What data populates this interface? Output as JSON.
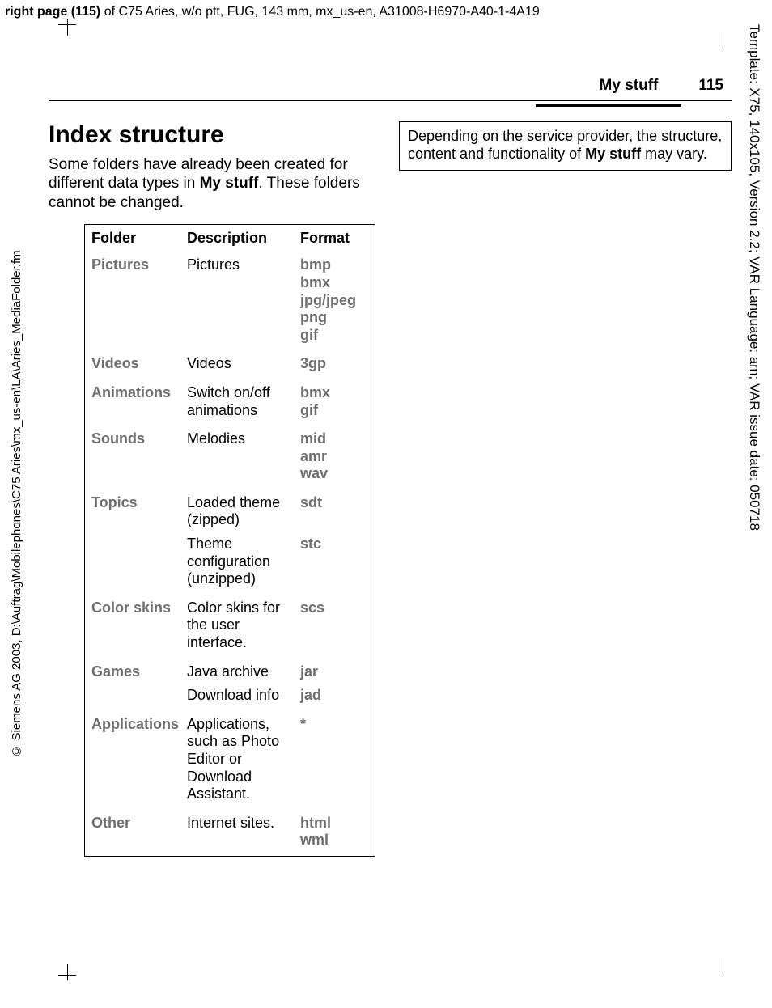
{
  "meta": {
    "top_bold": "right page (115)",
    "top_rest": " of C75 Aries, w/o ptt, FUG, 143 mm, mx_us-en, A31008-H6970-A40-1-4A19",
    "vert_left": "© Siemens AG 2003, D:\\Auftrag\\Mobilephones\\C75 Aries\\mx_us-en\\LA\\Aries_MediaFolder.fm",
    "vert_right": "Template: X75, 140x105, Version 2.2; VAR Language: am; VAR issue date: 050718"
  },
  "header": {
    "section": "My stuff",
    "page_number": "115"
  },
  "body": {
    "h1": "Index structure",
    "intro_before": "Some folders have already been created for different data types in ",
    "intro_bold": "My stuff",
    "intro_after": ". These folders cannot be changed."
  },
  "table": {
    "head": {
      "folder": "Folder",
      "desc": "Description",
      "fmt": "Format"
    },
    "rows": [
      {
        "folder": "Pictures",
        "desc": "Pictures",
        "fmt": "bmp\nbmx\njpg/jpeg\npng\ngif"
      },
      {
        "folder": "Videos",
        "desc": "Videos",
        "fmt": "3gp"
      },
      {
        "folder": "Animations",
        "desc": "Switch on/off animations",
        "fmt": "bmx\ngif"
      },
      {
        "folder": "Sounds",
        "desc": "Melodies",
        "fmt": "mid\namr\nwav"
      },
      {
        "folder": "Topics",
        "desc": "Loaded theme (zipped)",
        "fmt": "sdt",
        "sub": {
          "desc": "Theme configuration (unzipped)",
          "fmt": "stc"
        }
      },
      {
        "folder": "Color skins",
        "desc": "Color skins for the user interface.",
        "fmt": "scs"
      },
      {
        "folder": "Games",
        "desc": "Java archive",
        "fmt": "jar",
        "sub": {
          "desc": "Download info",
          "fmt": "jad"
        }
      },
      {
        "folder": "Applications",
        "desc": "Applications, such as Photo Editor or Download Assistant.",
        "fmt": "*"
      },
      {
        "folder": "Other",
        "desc": "Internet sites.",
        "fmt": "html\nwml"
      }
    ]
  },
  "note": {
    "before": "Depending on the service provider, the structure, content and functionality of ",
    "bold": "My stuff",
    "after": " may vary."
  }
}
